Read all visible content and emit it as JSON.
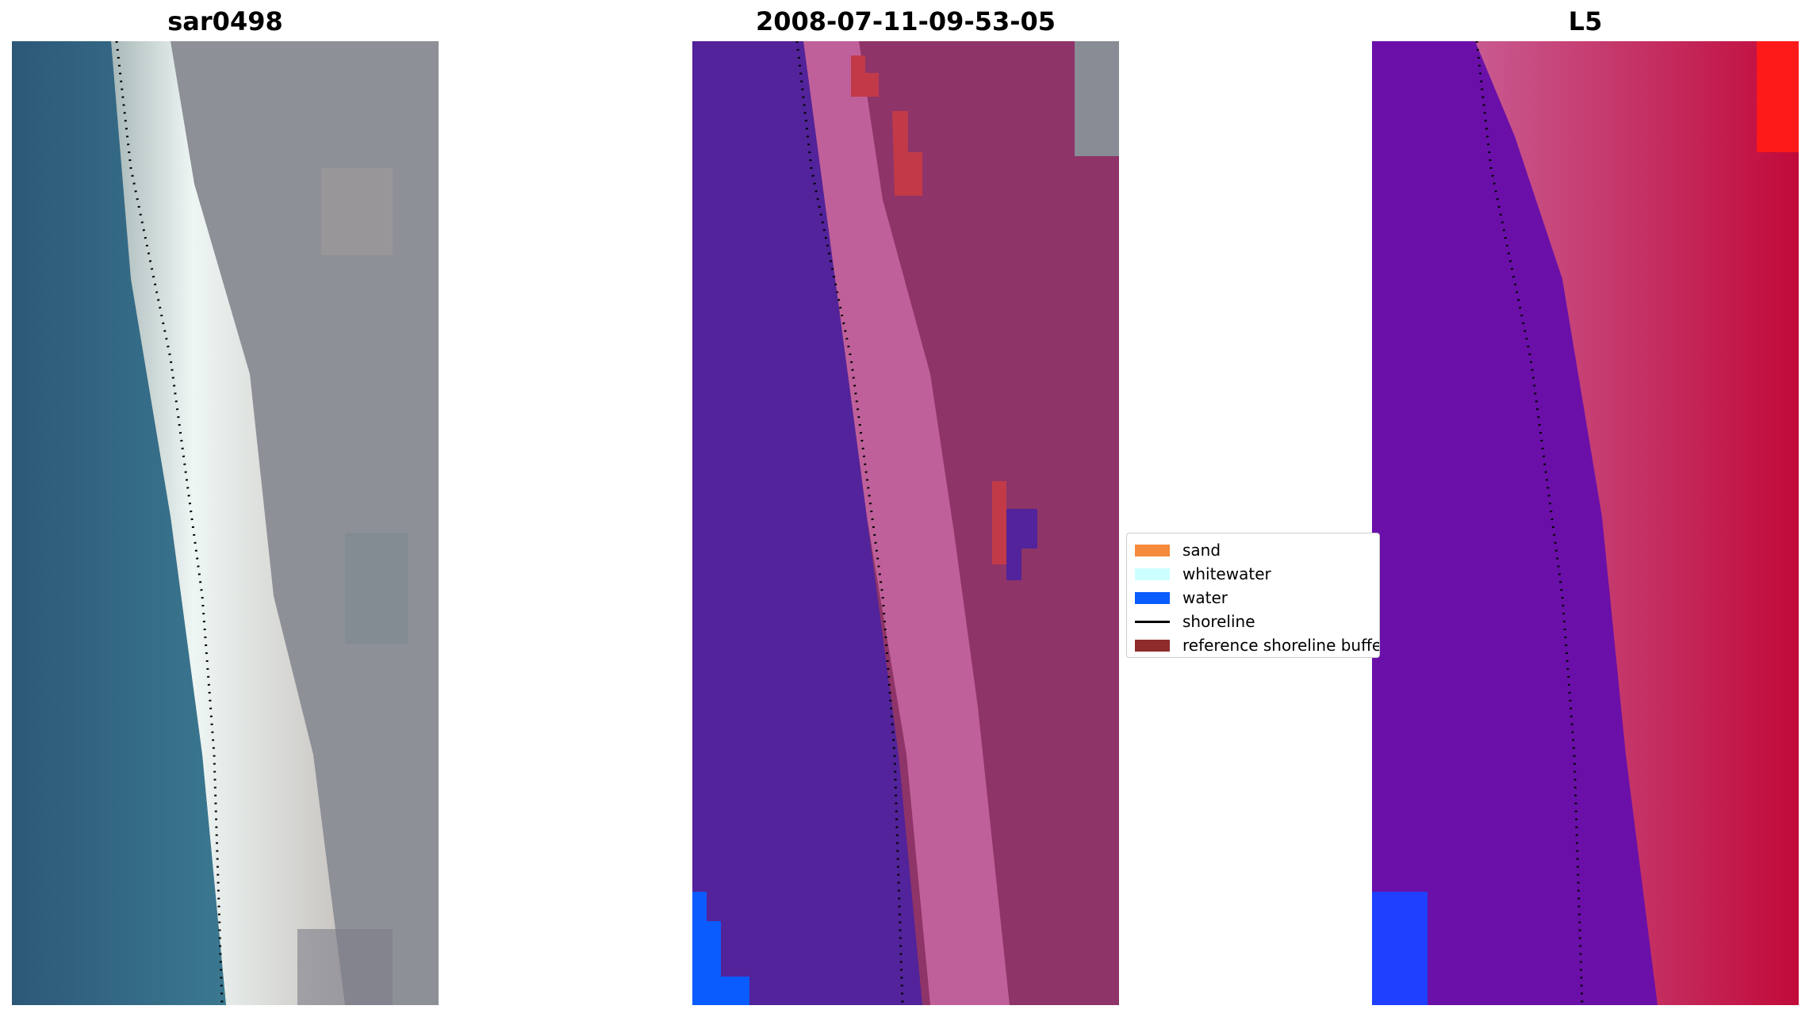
{
  "panels": [
    {
      "title": "sar0498"
    },
    {
      "title": "2008-07-11-09-53-05"
    },
    {
      "title": "L5"
    }
  ],
  "legend": {
    "entries": [
      {
        "label": "sand",
        "color": "#f58a3c",
        "kind": "patch"
      },
      {
        "label": "whitewater",
        "color": "#ccffff",
        "kind": "patch"
      },
      {
        "label": "water",
        "color": "#0a5cff",
        "kind": "patch"
      },
      {
        "label": "shoreline",
        "color": "#000000",
        "kind": "line"
      },
      {
        "label": "reference shoreline buffer",
        "color": "#8e2b2b",
        "kind": "patch"
      }
    ]
  },
  "colors": {
    "water_rgb": "#2e5f82",
    "beach_rgb": "#e8f2f2",
    "land_rgb": "#8f8f98",
    "class_water": "#52239a",
    "class_buffer": "#c0609a",
    "class_land": "#8e3468",
    "class_blob": "#c23a48",
    "class_gray": "#888c94",
    "index_low": "#6a10a8",
    "index_mid": "#c85a90",
    "index_high": "#c10a3a",
    "index_peak": "#ff1a1a",
    "deep_water_blue": "#1f40ff"
  }
}
